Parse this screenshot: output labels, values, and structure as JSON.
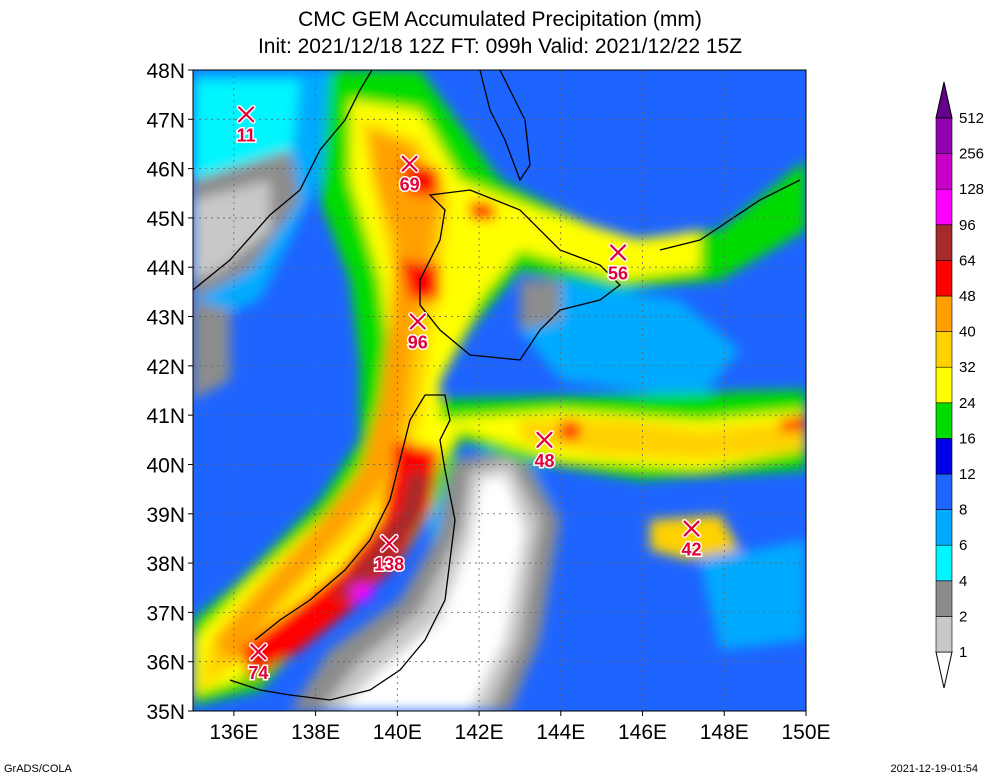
{
  "title": {
    "line1": "CMC GEM Accumulated Precipitation (mm)",
    "line2": "Init: 2021/12/18 12Z  FT: 099h  Valid: 2021/12/22 15Z"
  },
  "axes": {
    "lon_labels": [
      "136E",
      "138E",
      "140E",
      "142E",
      "144E",
      "146E",
      "148E",
      "150E"
    ],
    "lon_values": [
      136,
      138,
      140,
      142,
      144,
      146,
      148,
      150
    ],
    "lat_labels": [
      "48N",
      "47N",
      "46N",
      "45N",
      "44N",
      "43N",
      "42N",
      "41N",
      "40N",
      "39N",
      "38N",
      "37N",
      "36N",
      "35N"
    ],
    "lat_values": [
      48,
      47,
      46,
      45,
      44,
      43,
      42,
      41,
      40,
      39,
      38,
      37,
      36,
      35
    ],
    "lon_range": [
      135,
      150
    ],
    "lat_range": [
      35,
      48
    ]
  },
  "colorbar": {
    "labels": [
      "1",
      "2",
      "4",
      "6",
      "8",
      "12",
      "16",
      "24",
      "32",
      "40",
      "48",
      "64",
      "96",
      "128",
      "256",
      "512"
    ],
    "colors": [
      "#ffffff",
      "#c8c8c8",
      "#8c8c8c",
      "#00f5ff",
      "#00aaff",
      "#1e64ff",
      "#0000e6",
      "#00dc00",
      "#ffff00",
      "#ffd200",
      "#ffa000",
      "#ff0000",
      "#a52a2a",
      "#ff00ff",
      "#c800c8",
      "#9600b4",
      "#64008c"
    ]
  },
  "stations": [
    {
      "lon": 136.3,
      "lat": 47.1,
      "value": "11"
    },
    {
      "lon": 140.3,
      "lat": 46.1,
      "value": "69"
    },
    {
      "lon": 145.4,
      "lat": 44.3,
      "value": "56"
    },
    {
      "lon": 140.5,
      "lat": 42.9,
      "value": "96"
    },
    {
      "lon": 143.6,
      "lat": 40.5,
      "value": "48"
    },
    {
      "lon": 147.2,
      "lat": 38.7,
      "value": "42"
    },
    {
      "lon": 139.8,
      "lat": 38.4,
      "value": "138"
    },
    {
      "lon": 136.6,
      "lat": 36.2,
      "value": "74"
    }
  ],
  "footer": {
    "left": "GrADS/COLA",
    "right": "2021-12-19-01:54"
  }
}
